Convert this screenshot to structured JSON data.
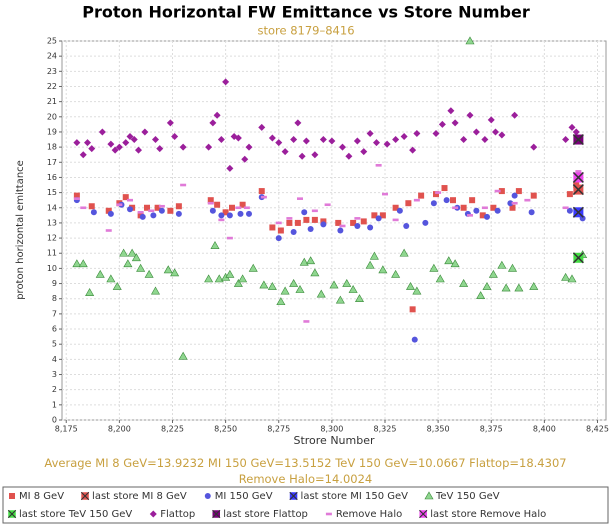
{
  "chart_data": {
    "type": "scatter",
    "title": "Proton Horizontal FW Emittance vs Store Number",
    "subtitle": "store 8179–8416",
    "x_label": "Strore Number",
    "y_label": "proton horizontal emittance",
    "annotation": "Average MI 8 GeV=13.9232 MI 150 GeV=13.5152 TeV 150 GeV=10.0667 Flattop=18.4307 Remove Halo=14.0024",
    "xlim": [
      8173,
      8429
    ],
    "ylim": [
      0,
      25
    ],
    "xticks": [
      {
        "value": 8175,
        "label": "8,175"
      },
      {
        "value": 8200,
        "label": "8,200"
      },
      {
        "value": 8225,
        "label": "8,225"
      },
      {
        "value": 8250,
        "label": "8,250"
      },
      {
        "value": 8275,
        "label": "8,275"
      },
      {
        "value": 8300,
        "label": "8,300"
      },
      {
        "value": 8325,
        "label": "8,325"
      },
      {
        "value": 8350,
        "label": "8,350"
      },
      {
        "value": 8375,
        "label": "8,375"
      },
      {
        "value": 8400,
        "label": "8,400"
      },
      {
        "value": 8425,
        "label": "8,425"
      }
    ],
    "yticks": [
      0,
      1,
      2,
      3,
      4,
      5,
      6,
      7,
      8,
      9,
      10,
      11,
      12,
      13,
      14,
      15,
      16,
      17,
      18,
      19,
      20,
      21,
      22,
      23,
      24,
      25
    ],
    "grid": true,
    "series": [
      {
        "name": "MI 8 GeV",
        "color": "#e0524e",
        "marker": "square",
        "x": [
          8180,
          8187,
          8195,
          8200,
          8203,
          8206,
          8210,
          8213,
          8218,
          8224,
          8228,
          8243,
          8246,
          8250,
          8253,
          8258,
          8267,
          8272,
          8276,
          8280,
          8284,
          8288,
          8292,
          8296,
          8303,
          8310,
          8315,
          8320,
          8324,
          8330,
          8336,
          8338,
          8342,
          8349,
          8353,
          8357,
          8362,
          8366,
          8371,
          8376,
          8380,
          8385,
          8388,
          8395,
          8412,
          8415
        ],
        "values": [
          14.8,
          14.1,
          13.8,
          14.3,
          14.7,
          14.0,
          13.5,
          14.0,
          14.0,
          13.8,
          14.1,
          14.5,
          14.2,
          13.7,
          14.0,
          14.2,
          15.1,
          12.7,
          12.5,
          13.0,
          13.0,
          13.2,
          13.2,
          13.1,
          13.0,
          13.0,
          13.1,
          13.5,
          13.5,
          14.0,
          14.3,
          7.3,
          14.8,
          14.9,
          15.3,
          14.5,
          14.0,
          14.5,
          13.5,
          14.0,
          15.1,
          14.0,
          15.1,
          14.8,
          14.9,
          15.5
        ]
      },
      {
        "name": "last store MI 8 GeV",
        "color": "#e0524e",
        "marker": "cross-box",
        "x": [
          8416
        ],
        "values": [
          15.2
        ]
      },
      {
        "name": "MI 150 GeV",
        "color": "#5555dd",
        "marker": "circle",
        "x": [
          8180,
          8188,
          8196,
          8201,
          8205,
          8211,
          8216,
          8220,
          8228,
          8244,
          8248,
          8252,
          8257,
          8261,
          8267,
          8275,
          8282,
          8287,
          8290,
          8296,
          8304,
          8312,
          8318,
          8322,
          8332,
          8335,
          8339,
          8344,
          8348,
          8354,
          8359,
          8364,
          8368,
          8373,
          8378,
          8384,
          8386,
          8394,
          8412,
          8418
        ],
        "values": [
          14.5,
          13.7,
          13.6,
          14.2,
          13.9,
          13.4,
          13.5,
          13.8,
          13.6,
          13.8,
          13.5,
          13.5,
          13.6,
          13.6,
          14.7,
          12.0,
          12.4,
          13.7,
          12.6,
          12.9,
          12.5,
          12.8,
          12.7,
          13.3,
          13.8,
          12.8,
          5.3,
          13.0,
          14.3,
          14.5,
          14.0,
          13.6,
          13.8,
          13.4,
          13.8,
          14.3,
          14.8,
          13.7,
          13.8,
          13.3
        ]
      },
      {
        "name": "last store MI 150 GeV",
        "color": "#3b3bff",
        "marker": "cross-box",
        "x": [
          8416
        ],
        "values": [
          13.7
        ]
      },
      {
        "name": "TeV 150 GeV",
        "color": "#8fd68f",
        "marker": "triangle",
        "x": [
          8180,
          8183,
          8186,
          8191,
          8196,
          8199,
          8202,
          8204,
          8206,
          8208,
          8210,
          8214,
          8217,
          8223,
          8226,
          8230,
          8242,
          8245,
          8247,
          8250,
          8252,
          8256,
          8258,
          8263,
          8268,
          8272,
          8276,
          8278,
          8282,
          8285,
          8287,
          8290,
          8292,
          8295,
          8301,
          8304,
          8307,
          8310,
          8313,
          8318,
          8320,
          8324,
          8330,
          8334,
          8337,
          8340,
          8348,
          8351,
          8355,
          8358,
          8362,
          8365,
          8370,
          8373,
          8376,
          8380,
          8382,
          8385,
          8388,
          8395,
          8410,
          8413,
          8418
        ],
        "values": [
          10.3,
          10.3,
          8.4,
          9.6,
          9.3,
          8.8,
          11.0,
          10.3,
          11.0,
          10.7,
          10.0,
          9.6,
          8.5,
          9.9,
          9.7,
          4.2,
          9.3,
          11.5,
          9.3,
          9.4,
          9.6,
          9.0,
          9.3,
          10.0,
          8.9,
          8.8,
          7.8,
          8.5,
          9.0,
          8.6,
          10.4,
          10.5,
          9.7,
          8.3,
          8.9,
          7.9,
          9.0,
          8.6,
          8.0,
          10.2,
          10.8,
          9.9,
          9.6,
          11.0,
          8.8,
          8.5,
          10.0,
          9.3,
          10.5,
          10.3,
          9.0,
          25.0,
          8.2,
          8.8,
          9.6,
          10.2,
          8.7,
          10.0,
          8.7,
          8.8,
          9.4,
          9.3,
          10.9
        ]
      },
      {
        "name": "last store TeV 150 GeV",
        "color": "#44dd44",
        "marker": "cross-box",
        "x": [
          8416
        ],
        "values": [
          10.7
        ]
      },
      {
        "name": "Flattop",
        "color": "#9b1f9b",
        "marker": "diamond",
        "x": [
          8180,
          8183,
          8185,
          8187,
          8192,
          8196,
          8198,
          8200,
          8203,
          8205,
          8207,
          8209,
          8212,
          8217,
          8219,
          8224,
          8226,
          8230,
          8242,
          8244,
          8246,
          8248,
          8250,
          8252,
          8254,
          8256,
          8259,
          8261,
          8267,
          8272,
          8275,
          8278,
          8282,
          8284,
          8286,
          8288,
          8292,
          8296,
          8300,
          8305,
          8308,
          8312,
          8315,
          8318,
          8321,
          8326,
          8330,
          8334,
          8338,
          8340,
          8349,
          8352,
          8356,
          8358,
          8362,
          8365,
          8368,
          8372,
          8375,
          8377,
          8380,
          8386,
          8395,
          8410,
          8413,
          8415
        ],
        "values": [
          18.3,
          17.5,
          18.3,
          17.9,
          19.0,
          18.2,
          17.8,
          18.0,
          18.3,
          18.7,
          18.5,
          17.8,
          19.0,
          18.5,
          17.9,
          19.6,
          18.7,
          18.0,
          18.0,
          19.6,
          20.1,
          18.5,
          22.3,
          16.6,
          18.7,
          18.6,
          17.2,
          18.0,
          19.3,
          18.6,
          18.3,
          17.7,
          18.5,
          19.6,
          17.4,
          18.4,
          17.5,
          18.5,
          18.4,
          18.0,
          17.4,
          18.4,
          17.7,
          18.9,
          18.3,
          18.2,
          18.5,
          18.7,
          17.8,
          18.9,
          18.9,
          19.5,
          20.4,
          19.6,
          18.5,
          20.1,
          19.0,
          18.5,
          19.8,
          19.0,
          18.8,
          20.1,
          18.0,
          18.5,
          19.3,
          19.0
        ]
      },
      {
        "name": "last store Flattop",
        "color": "#7a007a",
        "marker": "cross-box",
        "x": [
          8416
        ],
        "values": [
          18.5
        ]
      },
      {
        "name": "Remove Halo",
        "color": "#e07ad8",
        "marker": "dash",
        "x": [
          8180,
          8183,
          8195,
          8200,
          8205,
          8210,
          8215,
          8220,
          8230,
          8243,
          8248,
          8252,
          8256,
          8260,
          8268,
          8275,
          8280,
          8285,
          8288,
          8292,
          8298,
          8305,
          8312,
          8322,
          8325,
          8330,
          8340,
          8350,
          8358,
          8365,
          8372,
          8378,
          8386,
          8392,
          8410,
          8416
        ],
        "values": [
          14.6,
          14.0,
          12.5,
          14.2,
          14.5,
          13.7,
          13.8,
          14.1,
          15.5,
          14.3,
          13.2,
          12.0,
          14.0,
          14.0,
          14.7,
          13.0,
          13.3,
          14.6,
          6.5,
          13.8,
          14.2,
          12.8,
          13.3,
          16.8,
          14.9,
          13.2,
          14.5,
          15.0,
          14.0,
          13.5,
          14.0,
          15.1,
          14.3,
          14.5,
          14.0,
          16.4
        ]
      },
      {
        "name": "last store Remove Halo",
        "color": "#ee44ee",
        "marker": "cross-box",
        "x": [
          8416
        ],
        "values": [
          16.0
        ]
      }
    ]
  }
}
